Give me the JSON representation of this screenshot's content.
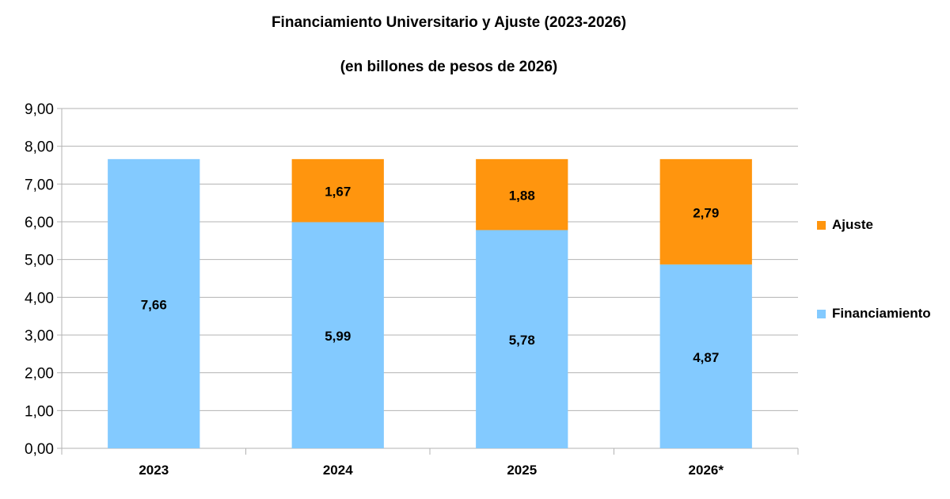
{
  "chart_data": {
    "type": "bar",
    "stacked": true,
    "title": "Financiamiento Universitario y Ajuste (2023-2026)",
    "subtitle": "(en billones de pesos de 2026)",
    "categories": [
      "2023",
      "2024",
      "2025",
      "2026*"
    ],
    "series": [
      {
        "name": "Financiamiento",
        "color": "#83caff",
        "values": [
          7.66,
          5.99,
          5.78,
          4.87
        ],
        "labels": [
          "7,66",
          "5,99",
          "5,78",
          "4,87"
        ]
      },
      {
        "name": "Ajuste",
        "color": "#ff950e",
        "values": [
          0,
          1.67,
          1.88,
          2.79
        ],
        "labels": [
          "",
          "1,67",
          "1,88",
          "2,79"
        ]
      }
    ],
    "ylim": [
      0,
      9
    ],
    "yticks": [
      "0,00",
      "1,00",
      "2,00",
      "3,00",
      "4,00",
      "5,00",
      "6,00",
      "7,00",
      "8,00",
      "9,00"
    ],
    "legend": [
      "Ajuste",
      "Financiamiento"
    ],
    "legend_position": "right",
    "grid": true
  }
}
